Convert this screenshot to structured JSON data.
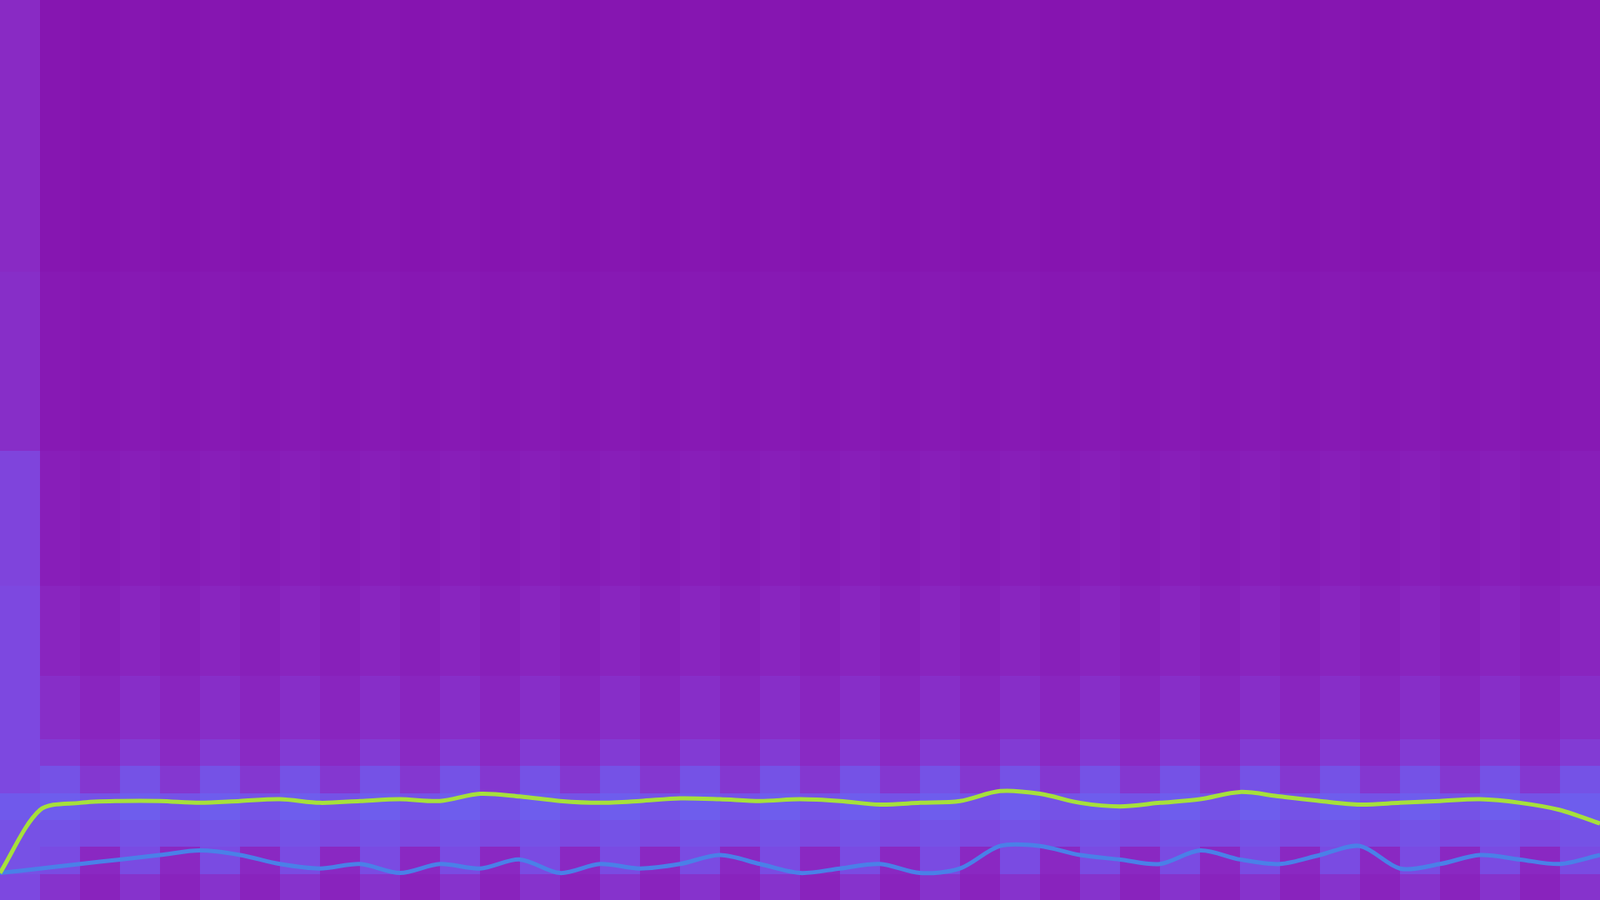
{
  "chart_data": {
    "type": "heatmap",
    "xlim": [
      0,
      40
    ],
    "ylim": [
      0,
      1
    ],
    "tick_labels": false,
    "grid": false,
    "x_edges": [
      0,
      1,
      2,
      3,
      4,
      5,
      6,
      7,
      8,
      9,
      10,
      11,
      12,
      13,
      14,
      15,
      16,
      17,
      18,
      19,
      20,
      21,
      22,
      23,
      24,
      25,
      26,
      27,
      28,
      29,
      30,
      31,
      32,
      33,
      34,
      35,
      36,
      37,
      38,
      39,
      40
    ],
    "y_edges": [
      0,
      0.03,
      0.06,
      0.09,
      0.12,
      0.15,
      0.18,
      0.25,
      0.35,
      0.5,
      0.7,
      1.0
    ],
    "zlim": [
      0,
      1
    ],
    "cells": [
      [
        0.3,
        0.2,
        0.12,
        0.2,
        0.12,
        0.2,
        0.12,
        0.2,
        0.12,
        0.2,
        0.12,
        0.2,
        0.12,
        0.2,
        0.12,
        0.2,
        0.12,
        0.2,
        0.12,
        0.2,
        0.12,
        0.2,
        0.12,
        0.2,
        0.12,
        0.2,
        0.12,
        0.2,
        0.12,
        0.2,
        0.12,
        0.2,
        0.12,
        0.2,
        0.12,
        0.2,
        0.12,
        0.2,
        0.12,
        0.2
      ],
      [
        0.35,
        0.32,
        0.15,
        0.32,
        0.15,
        0.32,
        0.15,
        0.32,
        0.15,
        0.32,
        0.15,
        0.32,
        0.15,
        0.32,
        0.15,
        0.32,
        0.15,
        0.32,
        0.15,
        0.32,
        0.15,
        0.32,
        0.15,
        0.32,
        0.15,
        0.32,
        0.15,
        0.32,
        0.15,
        0.32,
        0.15,
        0.32,
        0.15,
        0.32,
        0.15,
        0.32,
        0.15,
        0.32,
        0.15,
        0.32
      ],
      [
        0.35,
        0.36,
        0.3,
        0.36,
        0.3,
        0.36,
        0.3,
        0.36,
        0.3,
        0.36,
        0.3,
        0.36,
        0.3,
        0.36,
        0.3,
        0.36,
        0.3,
        0.36,
        0.3,
        0.36,
        0.3,
        0.36,
        0.3,
        0.36,
        0.3,
        0.36,
        0.3,
        0.36,
        0.3,
        0.36,
        0.3,
        0.36,
        0.3,
        0.36,
        0.3,
        0.36,
        0.3,
        0.36,
        0.3,
        0.36
      ],
      [
        0.4,
        0.42,
        0.36,
        0.42,
        0.36,
        0.42,
        0.36,
        0.42,
        0.36,
        0.42,
        0.36,
        0.42,
        0.36,
        0.42,
        0.36,
        0.42,
        0.36,
        0.42,
        0.36,
        0.42,
        0.36,
        0.42,
        0.36,
        0.42,
        0.36,
        0.42,
        0.36,
        0.42,
        0.36,
        0.42,
        0.36,
        0.42,
        0.36,
        0.42,
        0.36,
        0.42,
        0.36,
        0.42,
        0.36,
        0.42
      ],
      [
        0.3,
        0.36,
        0.22,
        0.36,
        0.22,
        0.36,
        0.22,
        0.36,
        0.22,
        0.36,
        0.22,
        0.36,
        0.22,
        0.36,
        0.22,
        0.36,
        0.22,
        0.36,
        0.22,
        0.36,
        0.22,
        0.36,
        0.22,
        0.36,
        0.22,
        0.36,
        0.22,
        0.36,
        0.22,
        0.36,
        0.22,
        0.36,
        0.22,
        0.36,
        0.22,
        0.36,
        0.22,
        0.36,
        0.22,
        0.36
      ],
      [
        0.3,
        0.24,
        0.16,
        0.24,
        0.16,
        0.24,
        0.16,
        0.24,
        0.16,
        0.24,
        0.16,
        0.24,
        0.16,
        0.24,
        0.16,
        0.24,
        0.16,
        0.24,
        0.16,
        0.24,
        0.16,
        0.24,
        0.16,
        0.24,
        0.16,
        0.24,
        0.16,
        0.24,
        0.16,
        0.24,
        0.16,
        0.24,
        0.16,
        0.24,
        0.16,
        0.24,
        0.16,
        0.24,
        0.16,
        0.24
      ],
      [
        0.3,
        0.18,
        0.13,
        0.18,
        0.13,
        0.18,
        0.13,
        0.18,
        0.13,
        0.18,
        0.13,
        0.18,
        0.13,
        0.18,
        0.13,
        0.18,
        0.13,
        0.18,
        0.13,
        0.18,
        0.13,
        0.18,
        0.13,
        0.18,
        0.13,
        0.18,
        0.13,
        0.18,
        0.13,
        0.18,
        0.13,
        0.18,
        0.13,
        0.18,
        0.13,
        0.18,
        0.13,
        0.18,
        0.13,
        0.18
      ],
      [
        0.3,
        0.13,
        0.1,
        0.13,
        0.1,
        0.13,
        0.1,
        0.13,
        0.1,
        0.13,
        0.1,
        0.13,
        0.1,
        0.13,
        0.1,
        0.13,
        0.1,
        0.13,
        0.1,
        0.13,
        0.1,
        0.13,
        0.1,
        0.13,
        0.1,
        0.13,
        0.1,
        0.13,
        0.1,
        0.13,
        0.1,
        0.13,
        0.1,
        0.13,
        0.1,
        0.13,
        0.1,
        0.13,
        0.1,
        0.13
      ],
      [
        0.28,
        0.09,
        0.07,
        0.09,
        0.07,
        0.09,
        0.07,
        0.09,
        0.07,
        0.09,
        0.07,
        0.09,
        0.07,
        0.09,
        0.07,
        0.09,
        0.07,
        0.09,
        0.07,
        0.09,
        0.07,
        0.09,
        0.07,
        0.09,
        0.07,
        0.09,
        0.07,
        0.09,
        0.07,
        0.09,
        0.07,
        0.09,
        0.07,
        0.09,
        0.07,
        0.09,
        0.07,
        0.09,
        0.07,
        0.09
      ],
      [
        0.18,
        0.06,
        0.05,
        0.06,
        0.05,
        0.06,
        0.05,
        0.06,
        0.05,
        0.06,
        0.05,
        0.06,
        0.05,
        0.06,
        0.05,
        0.06,
        0.05,
        0.06,
        0.05,
        0.06,
        0.05,
        0.06,
        0.05,
        0.06,
        0.05,
        0.06,
        0.05,
        0.06,
        0.05,
        0.06,
        0.05,
        0.06,
        0.05,
        0.06,
        0.05,
        0.06,
        0.05,
        0.06,
        0.05,
        0.06
      ],
      [
        0.16,
        0.04,
        0.03,
        0.04,
        0.03,
        0.04,
        0.03,
        0.04,
        0.03,
        0.04,
        0.03,
        0.04,
        0.03,
        0.04,
        0.03,
        0.04,
        0.03,
        0.04,
        0.03,
        0.04,
        0.03,
        0.04,
        0.03,
        0.04,
        0.03,
        0.04,
        0.03,
        0.04,
        0.03,
        0.04,
        0.03,
        0.04,
        0.03,
        0.04,
        0.03,
        0.04,
        0.03,
        0.04,
        0.03,
        0.04
      ]
    ],
    "x": [
      0,
      1,
      2,
      3,
      4,
      5,
      6,
      7,
      8,
      9,
      10,
      11,
      12,
      13,
      14,
      15,
      16,
      17,
      18,
      19,
      20,
      21,
      22,
      23,
      24,
      25,
      26,
      27,
      28,
      29,
      30,
      31,
      32,
      33,
      34,
      35,
      36,
      37,
      38,
      39,
      40
    ],
    "series": [
      {
        "type": "line",
        "color": "#a6e03c",
        "values": [
          0.03,
          0.1,
          0.108,
          0.11,
          0.11,
          0.108,
          0.11,
          0.112,
          0.108,
          0.11,
          0.112,
          0.11,
          0.118,
          0.115,
          0.11,
          0.108,
          0.11,
          0.113,
          0.112,
          0.11,
          0.112,
          0.11,
          0.106,
          0.108,
          0.11,
          0.121,
          0.118,
          0.108,
          0.104,
          0.108,
          0.112,
          0.12,
          0.115,
          0.11,
          0.106,
          0.108,
          0.11,
          0.112,
          0.108,
          0.1,
          0.085
        ]
      },
      {
        "type": "line",
        "color": "#4a80e8",
        "values": [
          0.03,
          0.035,
          0.04,
          0.045,
          0.05,
          0.055,
          0.05,
          0.04,
          0.035,
          0.04,
          0.03,
          0.04,
          0.035,
          0.045,
          0.03,
          0.04,
          0.035,
          0.04,
          0.05,
          0.04,
          0.03,
          0.035,
          0.04,
          0.03,
          0.035,
          0.06,
          0.06,
          0.05,
          0.045,
          0.04,
          0.055,
          0.045,
          0.04,
          0.05,
          0.06,
          0.035,
          0.04,
          0.05,
          0.045,
          0.04,
          0.05
        ]
      }
    ]
  }
}
